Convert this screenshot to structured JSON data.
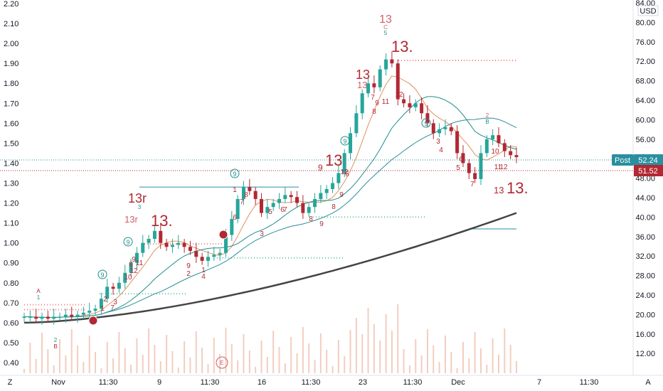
{
  "colors": {
    "background": "#ffffff",
    "up_candle": "#26a69a",
    "down_candle": "#b22833",
    "grid": "#f0f3fa",
    "ma_fast": "#e0915f",
    "ma_mid": "#1e8e8a",
    "ma_slow_2": "#2a8f9a",
    "ma_long": "#444444",
    "count_red": "#b22833",
    "count_pink": "#d1606b",
    "count_teal": "#1e8e8a",
    "level_dots_red": "#f08080",
    "level_dots_green": "#66c2a0",
    "level_line": "#2a8fa0",
    "post_badge": "#2a8fa0",
    "price_badge": "#b22833",
    "volume": "#f0c0b0"
  },
  "left_axis": {
    "labels": [
      "2.20",
      "2.10",
      "2.00",
      "1.90",
      "1.80",
      "1.70",
      "1.60",
      "1.50",
      "1.40",
      "1.30",
      "1.20",
      "1.10",
      "1.00",
      "0.90",
      "0.80",
      "0.70",
      "0.60",
      "0.50",
      "0.40"
    ]
  },
  "right_axis": {
    "labels": [
      "84.00",
      "80.00",
      "76.00",
      "72.00",
      "68.00",
      "64.00",
      "60.00",
      "56.00",
      "52.00",
      "48.00",
      "44.00",
      "40.00",
      "36.00",
      "32.00",
      "28.00",
      "24.00",
      "20.00",
      "16.00",
      "12.00"
    ],
    "currency": "USD",
    "post_label": "Post",
    "post_value": "52.24",
    "last_value": "51.52"
  },
  "bottom_axis": {
    "labels": [
      "Nov",
      "11:30",
      "9",
      "11:30",
      "16",
      "11:30",
      "23",
      "11:30",
      "Dec",
      "7",
      "11:30"
    ],
    "left_corner": "Z",
    "right_corner": "A"
  },
  "counts": {
    "c13_top": "13",
    "c_letter": "C",
    "c_number": "5",
    "label_13_dot_top": "13.",
    "label_13_mid": "13",
    "label_13_mid2": "13",
    "label_13_left": "13",
    "label_13_r": "13r",
    "label_13_r_sub": "3",
    "label_13r_small": "13r",
    "label_13_dot_left": "13.",
    "label_13_dot_right": "13.",
    "label_13_right_small": "13",
    "label_A": "A",
    "label_A_sub": "1",
    "label_B_top": "2",
    "label_B": "B",
    "label_B_right_num": "2",
    "label_B_right": "B",
    "label_E": "E",
    "nine_a": "9",
    "nine_b": "9",
    "nine_c": "9",
    "nine_d": "9",
    "nine_e": "9",
    "nine_f": "9",
    "small_digits": [
      {
        "t": "1",
        "k": "nov_1"
      },
      {
        "t": "2",
        "k": "nov_2"
      },
      {
        "t": "3",
        "k": "nov_3"
      },
      {
        "t": "7",
        "k": "nov_7"
      },
      {
        "t": "8",
        "k": "a8"
      },
      {
        "t": "9",
        "k": "a9"
      },
      {
        "t": "10",
        "k": "a10"
      },
      {
        "t": "11",
        "k": "a11"
      },
      {
        "t": "12",
        "k": "a12"
      },
      {
        "t": "9",
        "k": "b9"
      },
      {
        "t": "2",
        "k": "b2"
      },
      {
        "t": "1",
        "k": "b1"
      },
      {
        "t": "4",
        "k": "b4"
      },
      {
        "t": "1",
        "k": "c1"
      },
      {
        "t": "6",
        "k": "c6"
      },
      {
        "t": "7",
        "k": "c7"
      },
      {
        "t": "8",
        "k": "c8"
      },
      {
        "t": "3",
        "k": "c3"
      },
      {
        "t": "5",
        "k": "c5"
      },
      {
        "t": "6",
        "k": "c6b"
      },
      {
        "t": "7",
        "k": "c7b"
      },
      {
        "t": "8",
        "k": "c8b"
      },
      {
        "t": "9",
        "k": "c9"
      },
      {
        "t": "12",
        "k": "d12"
      },
      {
        "t": "9",
        "k": "d9"
      },
      {
        "t": "6",
        "k": "d6"
      },
      {
        "t": "8",
        "k": "d8"
      },
      {
        "t": "7",
        "k": "e7"
      },
      {
        "t": "8",
        "k": "e8"
      },
      {
        "t": "9",
        "k": "e9"
      },
      {
        "t": "11",
        "k": "e11"
      },
      {
        "t": "12",
        "k": "e12"
      },
      {
        "t": "3",
        "k": "f3"
      },
      {
        "t": "4",
        "k": "f4"
      },
      {
        "t": "5",
        "k": "f5"
      },
      {
        "t": "6",
        "k": "f6"
      },
      {
        "t": "7",
        "k": "f7"
      },
      {
        "t": "10",
        "k": "g10"
      },
      {
        "t": "11",
        "k": "g11"
      },
      {
        "t": "12",
        "k": "g12"
      }
    ]
  },
  "chart_data": {
    "type": "candlestick",
    "title": "",
    "left_axis_range": [
      0.36,
      2.24
    ],
    "right_axis_range": [
      8.8,
      84.0
    ],
    "x_labels": [
      "Nov",
      "11:30",
      "9",
      "11:30",
      "16",
      "11:30",
      "23",
      "11:30",
      "Dec",
      "7",
      "11:30"
    ],
    "grid": false,
    "candles_approx_close_left_axis": [
      0.63,
      0.63,
      0.62,
      0.63,
      0.62,
      0.63,
      0.63,
      0.64,
      0.63,
      0.64,
      0.65,
      0.66,
      0.67,
      0.72,
      0.78,
      0.77,
      0.8,
      0.85,
      0.9,
      0.95,
      1.0,
      1.02,
      1.06,
      1.0,
      0.98,
      0.99,
      1.0,
      0.98,
      0.96,
      0.93,
      0.91,
      0.93,
      0.94,
      0.95,
      1.04,
      1.12,
      1.22,
      1.28,
      1.26,
      1.22,
      1.15,
      1.18,
      1.2,
      1.22,
      1.24,
      1.23,
      1.2,
      1.15,
      1.18,
      1.22,
      1.25,
      1.27,
      1.3,
      1.35,
      1.45,
      1.55,
      1.65,
      1.75,
      1.8,
      1.78,
      1.87,
      1.92,
      1.9,
      1.72,
      1.7,
      1.68,
      1.7,
      1.65,
      1.6,
      1.55,
      1.57,
      1.58,
      1.56,
      1.45,
      1.4,
      1.35,
      1.32,
      1.45,
      1.52,
      1.54,
      1.5,
      1.46,
      1.44,
      1.43
    ],
    "moving_averages": [
      "fast",
      "mid",
      "slow",
      "long"
    ],
    "volume": true
  }
}
